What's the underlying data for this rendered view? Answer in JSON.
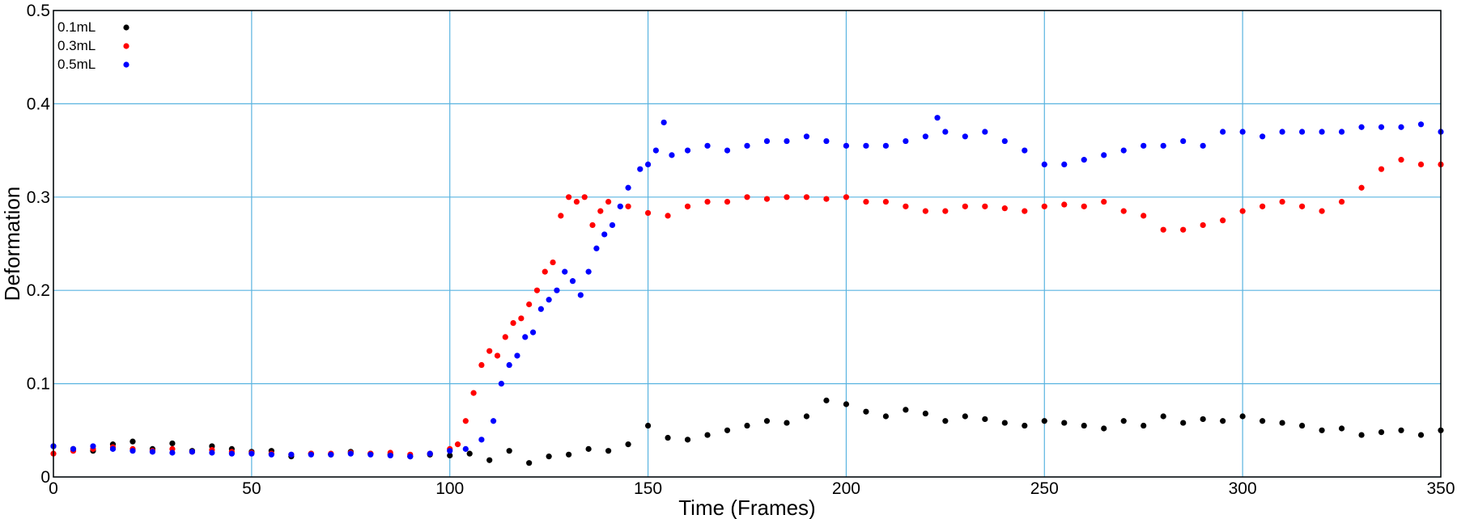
{
  "chart_data": {
    "type": "scatter",
    "xlabel": "Time (Frames)",
    "ylabel": "Deformation",
    "xlim": [
      0,
      350
    ],
    "ylim": [
      0,
      0.5
    ],
    "x_ticks": [
      0,
      50,
      100,
      150,
      200,
      250,
      300,
      350
    ],
    "y_ticks": [
      "0",
      "0.1",
      "0.2",
      "0.3",
      "0.4",
      "0.5"
    ],
    "grid": true,
    "grid_color": "#5ab4e0",
    "legend_position": "top-left",
    "series": [
      {
        "name": "0.1mL",
        "color": "#000000",
        "points": [
          [
            0,
            0.033
          ],
          [
            5,
            0.03
          ],
          [
            10,
            0.028
          ],
          [
            15,
            0.035
          ],
          [
            20,
            0.038
          ],
          [
            25,
            0.03
          ],
          [
            30,
            0.036
          ],
          [
            35,
            0.028
          ],
          [
            40,
            0.033
          ],
          [
            45,
            0.03
          ],
          [
            50,
            0.027
          ],
          [
            55,
            0.028
          ],
          [
            60,
            0.022
          ],
          [
            65,
            0.025
          ],
          [
            70,
            0.024
          ],
          [
            75,
            0.027
          ],
          [
            80,
            0.025
          ],
          [
            85,
            0.024
          ],
          [
            90,
            0.022
          ],
          [
            95,
            0.024
          ],
          [
            100,
            0.023
          ],
          [
            105,
            0.025
          ],
          [
            110,
            0.018
          ],
          [
            115,
            0.028
          ],
          [
            120,
            0.015
          ],
          [
            125,
            0.022
          ],
          [
            130,
            0.024
          ],
          [
            135,
            0.03
          ],
          [
            140,
            0.028
          ],
          [
            145,
            0.035
          ],
          [
            150,
            0.055
          ],
          [
            155,
            0.042
          ],
          [
            160,
            0.04
          ],
          [
            165,
            0.045
          ],
          [
            170,
            0.05
          ],
          [
            175,
            0.055
          ],
          [
            180,
            0.06
          ],
          [
            185,
            0.058
          ],
          [
            190,
            0.065
          ],
          [
            195,
            0.082
          ],
          [
            200,
            0.078
          ],
          [
            205,
            0.07
          ],
          [
            210,
            0.065
          ],
          [
            215,
            0.072
          ],
          [
            220,
            0.068
          ],
          [
            225,
            0.06
          ],
          [
            230,
            0.065
          ],
          [
            235,
            0.062
          ],
          [
            240,
            0.058
          ],
          [
            245,
            0.055
          ],
          [
            250,
            0.06
          ],
          [
            255,
            0.058
          ],
          [
            260,
            0.055
          ],
          [
            265,
            0.052
          ],
          [
            270,
            0.06
          ],
          [
            275,
            0.055
          ],
          [
            280,
            0.065
          ],
          [
            285,
            0.058
          ],
          [
            290,
            0.062
          ],
          [
            295,
            0.06
          ],
          [
            300,
            0.065
          ],
          [
            305,
            0.06
          ],
          [
            310,
            0.058
          ],
          [
            315,
            0.055
          ],
          [
            320,
            0.05
          ],
          [
            325,
            0.052
          ],
          [
            330,
            0.045
          ],
          [
            335,
            0.048
          ],
          [
            340,
            0.05
          ],
          [
            345,
            0.045
          ],
          [
            350,
            0.05
          ]
        ]
      },
      {
        "name": "0.3mL",
        "color": "#ff0000",
        "points": [
          [
            0,
            0.025
          ],
          [
            5,
            0.028
          ],
          [
            10,
            0.03
          ],
          [
            15,
            0.032
          ],
          [
            20,
            0.03
          ],
          [
            25,
            0.028
          ],
          [
            30,
            0.03
          ],
          [
            35,
            0.027
          ],
          [
            40,
            0.029
          ],
          [
            45,
            0.027
          ],
          [
            50,
            0.026
          ],
          [
            55,
            0.025
          ],
          [
            60,
            0.024
          ],
          [
            65,
            0.025
          ],
          [
            70,
            0.025
          ],
          [
            75,
            0.026
          ],
          [
            80,
            0.025
          ],
          [
            85,
            0.026
          ],
          [
            90,
            0.024
          ],
          [
            95,
            0.025
          ],
          [
            100,
            0.03
          ],
          [
            102,
            0.035
          ],
          [
            104,
            0.06
          ],
          [
            106,
            0.09
          ],
          [
            108,
            0.12
          ],
          [
            110,
            0.135
          ],
          [
            112,
            0.13
          ],
          [
            114,
            0.15
          ],
          [
            116,
            0.165
          ],
          [
            118,
            0.17
          ],
          [
            120,
            0.185
          ],
          [
            122,
            0.2
          ],
          [
            124,
            0.22
          ],
          [
            126,
            0.23
          ],
          [
            128,
            0.28
          ],
          [
            130,
            0.3
          ],
          [
            132,
            0.295
          ],
          [
            134,
            0.3
          ],
          [
            136,
            0.27
          ],
          [
            138,
            0.285
          ],
          [
            140,
            0.295
          ],
          [
            145,
            0.29
          ],
          [
            150,
            0.283
          ],
          [
            155,
            0.28
          ],
          [
            160,
            0.29
          ],
          [
            165,
            0.295
          ],
          [
            170,
            0.295
          ],
          [
            175,
            0.3
          ],
          [
            180,
            0.298
          ],
          [
            185,
            0.3
          ],
          [
            190,
            0.3
          ],
          [
            195,
            0.298
          ],
          [
            200,
            0.3
          ],
          [
            205,
            0.295
          ],
          [
            210,
            0.295
          ],
          [
            215,
            0.29
          ],
          [
            220,
            0.285
          ],
          [
            225,
            0.285
          ],
          [
            230,
            0.29
          ],
          [
            235,
            0.29
          ],
          [
            240,
            0.288
          ],
          [
            245,
            0.285
          ],
          [
            250,
            0.29
          ],
          [
            255,
            0.292
          ],
          [
            260,
            0.29
          ],
          [
            265,
            0.295
          ],
          [
            270,
            0.285
          ],
          [
            275,
            0.28
          ],
          [
            280,
            0.265
          ],
          [
            285,
            0.265
          ],
          [
            290,
            0.27
          ],
          [
            295,
            0.275
          ],
          [
            300,
            0.285
          ],
          [
            305,
            0.29
          ],
          [
            310,
            0.295
          ],
          [
            315,
            0.29
          ],
          [
            320,
            0.285
          ],
          [
            325,
            0.295
          ],
          [
            330,
            0.31
          ],
          [
            335,
            0.33
          ],
          [
            340,
            0.34
          ],
          [
            345,
            0.335
          ],
          [
            350,
            0.335
          ]
        ]
      },
      {
        "name": "0.5mL",
        "color": "#0000ff",
        "points": [
          [
            0,
            0.033
          ],
          [
            5,
            0.03
          ],
          [
            10,
            0.033
          ],
          [
            15,
            0.03
          ],
          [
            20,
            0.028
          ],
          [
            25,
            0.027
          ],
          [
            30,
            0.026
          ],
          [
            35,
            0.027
          ],
          [
            40,
            0.026
          ],
          [
            45,
            0.025
          ],
          [
            50,
            0.025
          ],
          [
            55,
            0.024
          ],
          [
            60,
            0.024
          ],
          [
            65,
            0.024
          ],
          [
            70,
            0.024
          ],
          [
            75,
            0.025
          ],
          [
            80,
            0.024
          ],
          [
            85,
            0.023
          ],
          [
            90,
            0.022
          ],
          [
            95,
            0.025
          ],
          [
            100,
            0.028
          ],
          [
            104,
            0.03
          ],
          [
            108,
            0.04
          ],
          [
            111,
            0.06
          ],
          [
            113,
            0.1
          ],
          [
            115,
            0.12
          ],
          [
            117,
            0.13
          ],
          [
            119,
            0.15
          ],
          [
            121,
            0.155
          ],
          [
            123,
            0.18
          ],
          [
            125,
            0.19
          ],
          [
            127,
            0.2
          ],
          [
            129,
            0.22
          ],
          [
            131,
            0.21
          ],
          [
            133,
            0.195
          ],
          [
            135,
            0.22
          ],
          [
            137,
            0.245
          ],
          [
            139,
            0.26
          ],
          [
            141,
            0.27
          ],
          [
            143,
            0.29
          ],
          [
            145,
            0.31
          ],
          [
            148,
            0.33
          ],
          [
            150,
            0.335
          ],
          [
            152,
            0.35
          ],
          [
            154,
            0.38
          ],
          [
            156,
            0.345
          ],
          [
            160,
            0.35
          ],
          [
            165,
            0.355
          ],
          [
            170,
            0.35
          ],
          [
            175,
            0.355
          ],
          [
            180,
            0.36
          ],
          [
            185,
            0.36
          ],
          [
            190,
            0.365
          ],
          [
            195,
            0.36
          ],
          [
            200,
            0.355
          ],
          [
            205,
            0.355
          ],
          [
            210,
            0.355
          ],
          [
            215,
            0.36
          ],
          [
            220,
            0.365
          ],
          [
            223,
            0.385
          ],
          [
            225,
            0.37
          ],
          [
            230,
            0.365
          ],
          [
            235,
            0.37
          ],
          [
            240,
            0.36
          ],
          [
            245,
            0.35
          ],
          [
            250,
            0.335
          ],
          [
            255,
            0.335
          ],
          [
            260,
            0.34
          ],
          [
            265,
            0.345
          ],
          [
            270,
            0.35
          ],
          [
            275,
            0.355
          ],
          [
            280,
            0.355
          ],
          [
            285,
            0.36
          ],
          [
            290,
            0.355
          ],
          [
            295,
            0.37
          ],
          [
            300,
            0.37
          ],
          [
            305,
            0.365
          ],
          [
            310,
            0.37
          ],
          [
            315,
            0.37
          ],
          [
            320,
            0.37
          ],
          [
            325,
            0.37
          ],
          [
            330,
            0.375
          ],
          [
            335,
            0.375
          ],
          [
            340,
            0.375
          ],
          [
            345,
            0.378
          ],
          [
            350,
            0.37
          ]
        ]
      }
    ]
  }
}
